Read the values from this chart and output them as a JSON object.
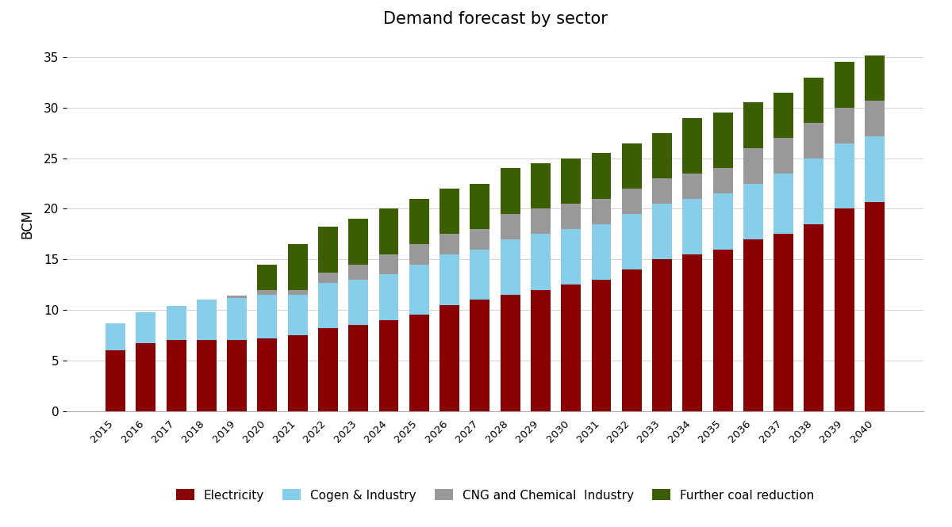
{
  "years": [
    2015,
    2016,
    2017,
    2018,
    2019,
    2020,
    2021,
    2022,
    2023,
    2024,
    2025,
    2026,
    2027,
    2028,
    2029,
    2030,
    2031,
    2032,
    2033,
    2034,
    2035,
    2036,
    2037,
    2038,
    2039,
    2040
  ],
  "electricity": [
    6.0,
    6.7,
    7.0,
    7.0,
    7.0,
    7.2,
    7.5,
    8.2,
    8.5,
    9.0,
    9.5,
    10.5,
    11.0,
    11.5,
    12.0,
    12.5,
    13.0,
    14.0,
    15.0,
    15.5,
    16.0,
    17.0,
    17.5,
    18.5,
    20.0,
    20.7
  ],
  "cogen_industry": [
    2.7,
    3.1,
    3.4,
    4.0,
    4.2,
    4.3,
    4.0,
    4.5,
    4.5,
    4.5,
    5.0,
    5.0,
    5.0,
    5.5,
    5.5,
    5.5,
    5.5,
    5.5,
    5.5,
    5.5,
    5.5,
    5.5,
    6.0,
    6.5,
    6.5,
    6.5
  ],
  "cng_chemical": [
    0.0,
    0.0,
    0.0,
    0.0,
    0.2,
    0.5,
    0.5,
    1.0,
    1.5,
    2.0,
    2.0,
    2.0,
    2.0,
    2.5,
    2.5,
    2.5,
    2.5,
    2.5,
    2.5,
    2.5,
    2.5,
    3.5,
    3.5,
    3.5,
    3.5,
    3.5
  ],
  "further_coal": [
    0.0,
    0.0,
    0.0,
    0.0,
    0.0,
    2.5,
    4.5,
    4.5,
    4.5,
    4.5,
    4.5,
    4.5,
    4.5,
    4.5,
    4.5,
    4.5,
    4.5,
    4.5,
    4.5,
    5.5,
    5.5,
    4.5,
    4.5,
    4.5,
    4.5,
    4.5
  ],
  "colors": {
    "electricity": "#8B0000",
    "cogen_industry": "#87CEEB",
    "cng_chemical": "#999999",
    "further_coal": "#3A5E00"
  },
  "title": "Demand forecast by sector",
  "ylabel": "BCM",
  "ylim": [
    0,
    37
  ],
  "yticks": [
    0,
    5,
    10,
    15,
    20,
    25,
    30,
    35
  ],
  "legend_labels": [
    "Electricity",
    "Cogen & Industry",
    "CNG and Chemical  Industry",
    "Further coal reduction"
  ],
  "bar_width": 0.65
}
